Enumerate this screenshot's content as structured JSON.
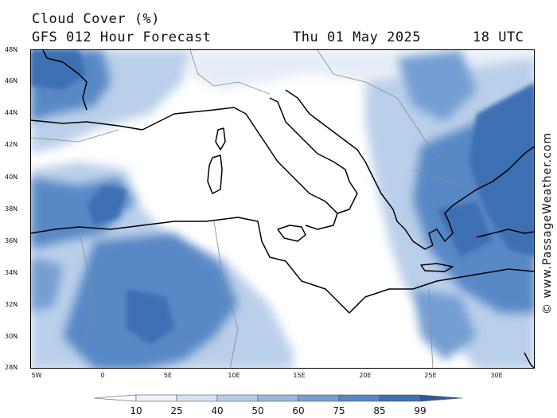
{
  "header": {
    "title": "Cloud Cover (%)",
    "model": "GFS 012 Hour Forecast",
    "date": "Thu 01 May 2025",
    "time": "18 UTC"
  },
  "map": {
    "region": "Mediterranean",
    "lon_range": [
      -6,
      33
    ],
    "lat_range": [
      28,
      48
    ],
    "lat_labels": [
      "48N",
      "46N",
      "44N",
      "42N",
      "40N",
      "38N",
      "36N",
      "34N",
      "32N",
      "30N",
      "28N"
    ],
    "lon_labels": [
      "5W",
      "0",
      "5E",
      "10E",
      "15E",
      "20E",
      "25E",
      "30E"
    ]
  },
  "colorbar": {
    "levels": [
      "10",
      "25",
      "40",
      "50",
      "60",
      "75",
      "85",
      "99"
    ],
    "colors": [
      "#ffffff",
      "#eef3fb",
      "#d5e2f2",
      "#b7cde9",
      "#97b7df",
      "#759fd2",
      "#5888c6",
      "#3d6fb2",
      "#2e5a99"
    ]
  },
  "copyright": "© www.PassageWeather.com"
}
